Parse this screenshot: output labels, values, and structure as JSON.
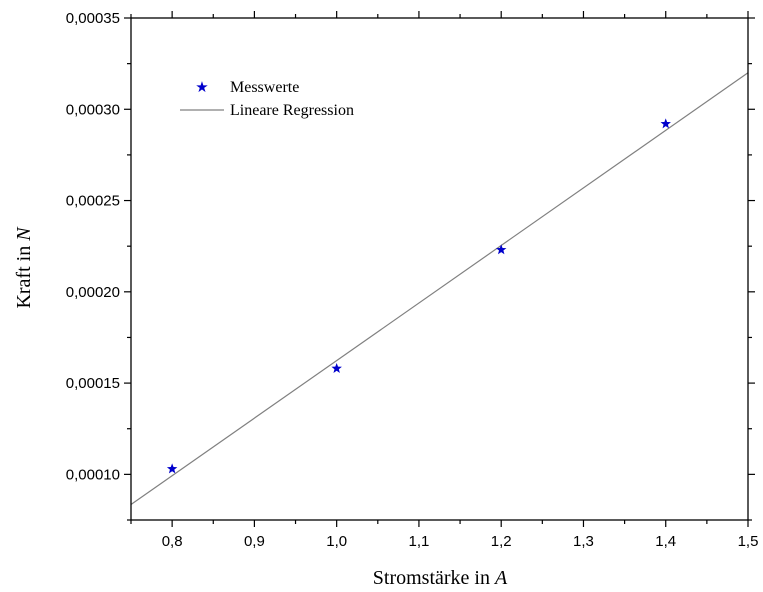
{
  "chart_data": {
    "type": "scatter",
    "xlabel": {
      "text": "Stromstärke in ",
      "unit": "A"
    },
    "ylabel": {
      "text": "Kraft in ",
      "unit": "N"
    },
    "xlim": [
      0.75,
      1.5
    ],
    "ylim": [
      7.5e-05,
      0.00035
    ],
    "x_ticks": [
      0.8,
      0.9,
      1.0,
      1.1,
      1.2,
      1.3,
      1.4,
      1.5
    ],
    "x_tick_labels": [
      "0,8",
      "0,9",
      "1,0",
      "1,1",
      "1,2",
      "1,3",
      "1,4",
      "1,5"
    ],
    "y_ticks": [
      0.0001,
      0.00015,
      0.0002,
      0.00025,
      0.0003,
      0.00035
    ],
    "y_tick_labels": [
      "0,00010",
      "0,00015",
      "0,00020",
      "0,00025",
      "0,00030",
      "0,00035"
    ],
    "legend_position": "top-left",
    "series": [
      {
        "name": "Messwerte",
        "kind": "scatter",
        "marker": "star",
        "color": "#0000cc",
        "x": [
          0.8,
          1.0,
          1.2,
          1.4
        ],
        "y": [
          0.000103,
          0.000158,
          0.000223,
          0.000292
        ]
      },
      {
        "name": "Lineare Regression",
        "kind": "line",
        "color": "#808080",
        "x": [
          0.75,
          1.5
        ],
        "y": [
          8.35e-05,
          0.00032
        ]
      }
    ]
  }
}
